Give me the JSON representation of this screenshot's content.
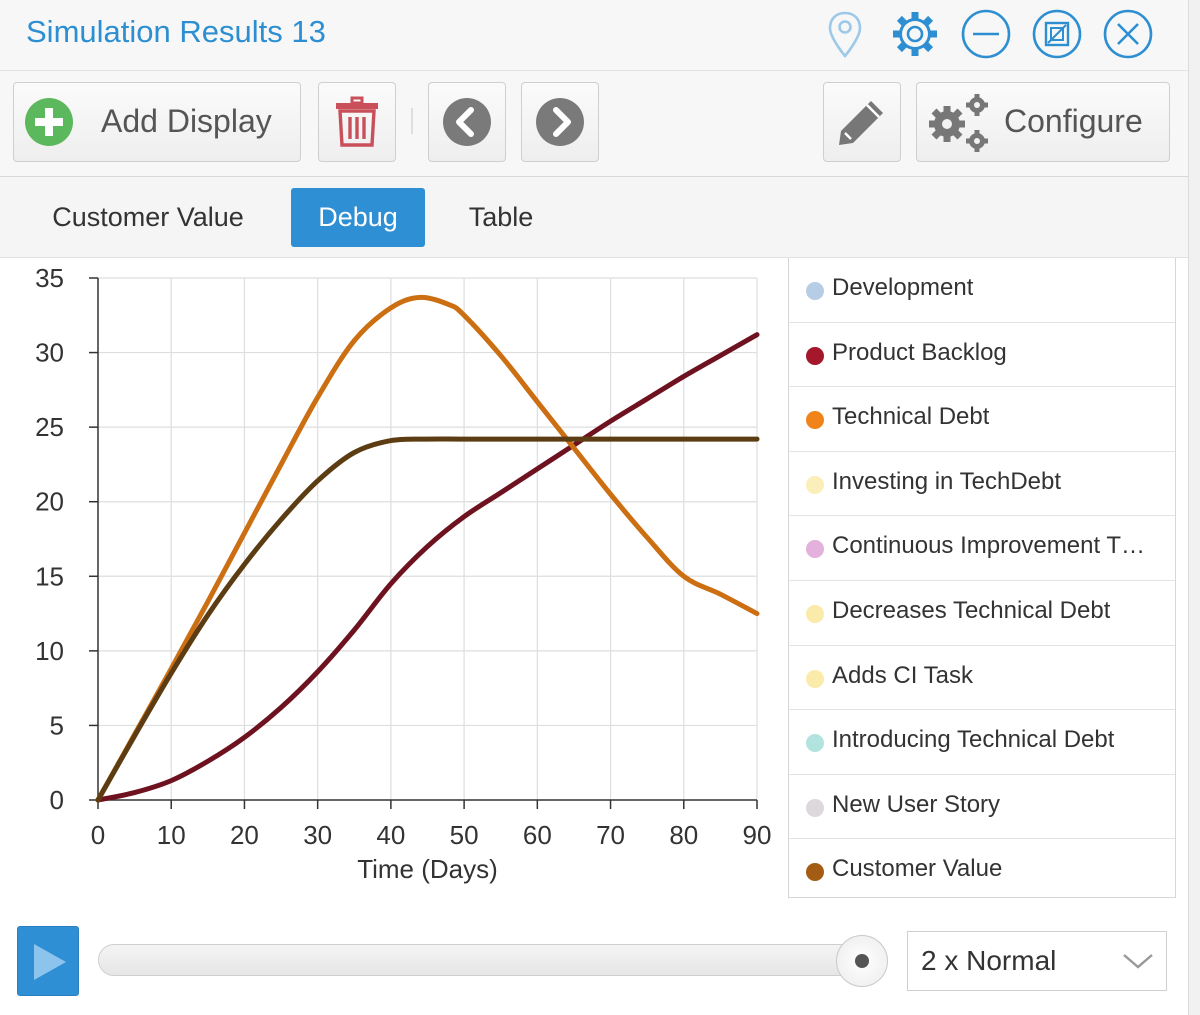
{
  "window": {
    "title": "Simulation Results 13",
    "icons": [
      "map-pin-icon",
      "gear-icon",
      "minimize-icon",
      "restore-icon",
      "close-icon"
    ]
  },
  "toolbar": {
    "add_display_label": "Add Display",
    "configure_label": "Configure",
    "icons": [
      "plus-circle-icon",
      "trash-icon",
      "chevron-left-icon",
      "chevron-right-icon",
      "pencil-icon",
      "gears-icon"
    ]
  },
  "tabs": [
    {
      "label": "Customer Value",
      "active": false
    },
    {
      "label": "Debug",
      "active": true
    },
    {
      "label": "Table",
      "active": false
    }
  ],
  "chart_data": {
    "type": "line",
    "title": "",
    "xlabel": "Time (Days)",
    "ylabel": "",
    "xlim": [
      0,
      90
    ],
    "ylim": [
      0,
      35
    ],
    "xticks": [
      0,
      10,
      20,
      30,
      40,
      50,
      60,
      70,
      80,
      90
    ],
    "yticks": [
      0,
      5,
      10,
      15,
      20,
      25,
      30,
      35
    ],
    "grid": true,
    "legend_position": "right",
    "series": [
      {
        "name": "Product Backlog",
        "color": "#6e1220",
        "x": [
          0,
          5,
          10,
          15,
          20,
          25,
          30,
          35,
          40,
          45,
          50,
          55,
          60,
          65,
          70,
          75,
          80,
          85,
          90
        ],
        "y": [
          0,
          0.5,
          1.3,
          2.6,
          4.2,
          6.2,
          8.6,
          11.4,
          14.5,
          17.0,
          19.0,
          20.6,
          22.2,
          23.8,
          25.4,
          26.9,
          28.4,
          29.8,
          31.2
        ]
      },
      {
        "name": "Technical Debt",
        "color": "#cc6f12",
        "x": [
          0,
          5,
          10,
          15,
          20,
          25,
          30,
          35,
          40,
          44,
          48,
          50,
          55,
          60,
          65,
          70,
          75,
          80,
          85,
          90
        ],
        "y": [
          0,
          4.4,
          8.8,
          13.3,
          17.9,
          22.5,
          27.0,
          30.8,
          33.0,
          33.7,
          33.2,
          32.5,
          29.8,
          26.7,
          23.6,
          20.5,
          17.6,
          15.0,
          13.8,
          12.5
        ]
      },
      {
        "name": "Customer Value",
        "color": "#5c3c12",
        "x": [
          0,
          5,
          10,
          15,
          20,
          25,
          30,
          35,
          40,
          45,
          50,
          60,
          70,
          80,
          90
        ],
        "y": [
          0,
          4.3,
          8.5,
          12.4,
          15.8,
          18.8,
          21.4,
          23.3,
          24.1,
          24.2,
          24.2,
          24.2,
          24.2,
          24.2,
          24.2
        ]
      }
    ],
    "legend": [
      {
        "name": "Development",
        "color": "#b7cde6"
      },
      {
        "name": "Product Backlog",
        "color": "#a5172b"
      },
      {
        "name": "Technical Debt",
        "color": "#f0841a"
      },
      {
        "name": "Investing in TechDebt",
        "color": "#faefb8"
      },
      {
        "name": "Continuous Improvement T…",
        "color": "#e3b1dc"
      },
      {
        "name": "Decreases Technical Debt",
        "color": "#faebaa"
      },
      {
        "name": "Adds CI Task",
        "color": "#faebaa"
      },
      {
        "name": "Introducing Technical Debt",
        "color": "#b2e3df"
      },
      {
        "name": "New User Story",
        "color": "#dcd8dc"
      },
      {
        "name": "Customer Value",
        "color": "#a35c14"
      }
    ]
  },
  "playback": {
    "progress": 1.0,
    "speed": "2 x Normal",
    "icons": [
      "play-icon",
      "chevron-down-icon"
    ]
  }
}
